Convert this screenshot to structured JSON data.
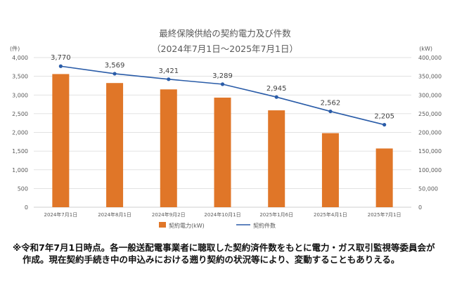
{
  "chart_data": {
    "type": "bar+line",
    "title": "最終保険供給の契約電力及び件数",
    "subtitle": "（2024年7月1日～2025年7月1日）",
    "categories": [
      "2024年7月1日",
      "2024年8月1日",
      "2024年9月2日",
      "2024年10月1日",
      "2025年1月6日",
      "2025年4月1日",
      "2025年7月1日"
    ],
    "series": [
      {
        "name": "契約電力(kW)",
        "type": "bar",
        "axis": "right",
        "color": "#E07628",
        "values": [
          356000,
          332000,
          315000,
          293000,
          259000,
          198000,
          157000
        ]
      },
      {
        "name": "契約件数",
        "type": "line",
        "axis": "left",
        "color": "#2A5CA8",
        "values": [
          3770,
          3569,
          3421,
          3289,
          2945,
          2562,
          2205
        ],
        "labels": [
          "3,770",
          "3,569",
          "3,421",
          "3,289",
          "2,945",
          "2,562",
          "2,205"
        ]
      }
    ],
    "y_left": {
      "unit": "(件)",
      "range": [
        0,
        4000
      ],
      "ticks": [
        "0",
        "500",
        "1,000",
        "1,500",
        "2,000",
        "2,500",
        "3,000",
        "3,500",
        "4,000"
      ]
    },
    "y_right": {
      "unit": "(kW)",
      "range": [
        0,
        400000
      ],
      "ticks": [
        "0",
        "50,000",
        "100,000",
        "150,000",
        "200,000",
        "250,000",
        "300,000",
        "350,000",
        "400,000"
      ]
    },
    "grid": true,
    "legend_position": "bottom"
  },
  "note": {
    "line1": "※令和7年7月1日時点。各一般送配電事業者に聴取した契約済件数をもとに電力・ガス取引監視等委員会が",
    "line2": "作成。現在契約手続き中の申込みにおける遡り契約の状況等により、変動することもありえる。"
  }
}
